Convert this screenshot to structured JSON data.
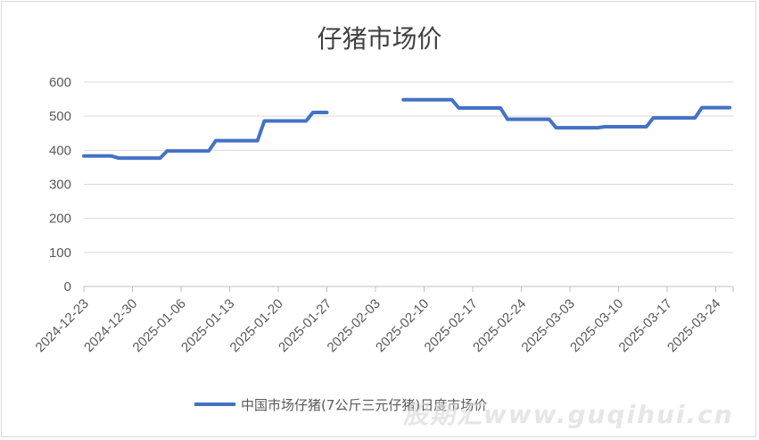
{
  "chart_data": {
    "type": "line",
    "title": "仔猪市场价",
    "xlabel": "",
    "ylabel": "",
    "ylim": [
      0,
      600
    ],
    "yticks": [
      0,
      100,
      200,
      300,
      400,
      500,
      600
    ],
    "xtick_labels": [
      "2024-12-23",
      "2024-12-30",
      "2025-01-06",
      "2025-01-13",
      "2025-01-20",
      "2025-01-27",
      "2025-02-03",
      "2025-02-10",
      "2025-02-17",
      "2025-02-24",
      "2025-03-03",
      "2025-03-10",
      "2025-03-17",
      "2025-03-24"
    ],
    "grid": true,
    "legend_position": "bottom",
    "series": [
      {
        "name": "中国市场仔猪(7公斤三元仔猪)日度市场价",
        "color": "#4472c4",
        "segments": [
          {
            "x": [
              "2024-12-23",
              "2024-12-27",
              "2024-12-28",
              "2025-01-03",
              "2025-01-04",
              "2025-01-10",
              "2025-01-11",
              "2025-01-17",
              "2025-01-18",
              "2025-01-24",
              "2025-01-25",
              "2025-01-27"
            ],
            "y": [
              383,
              383,
              377,
              377,
              398,
              398,
              428,
              428,
              486,
              486,
              511,
              511
            ]
          },
          {
            "x": [
              "2025-02-07",
              "2025-02-14",
              "2025-02-15",
              "2025-02-21",
              "2025-02-22",
              "2025-02-28",
              "2025-03-01",
              "2025-03-07",
              "2025-03-08",
              "2025-03-14",
              "2025-03-15",
              "2025-03-21",
              "2025-03-22",
              "2025-03-26"
            ],
            "y": [
              548,
              548,
              524,
              524,
              491,
              491,
              466,
              466,
              469,
              469,
              495,
              495,
              525,
              525
            ]
          }
        ]
      }
    ]
  },
  "watermark": "股期汇www.guqihui.cn"
}
